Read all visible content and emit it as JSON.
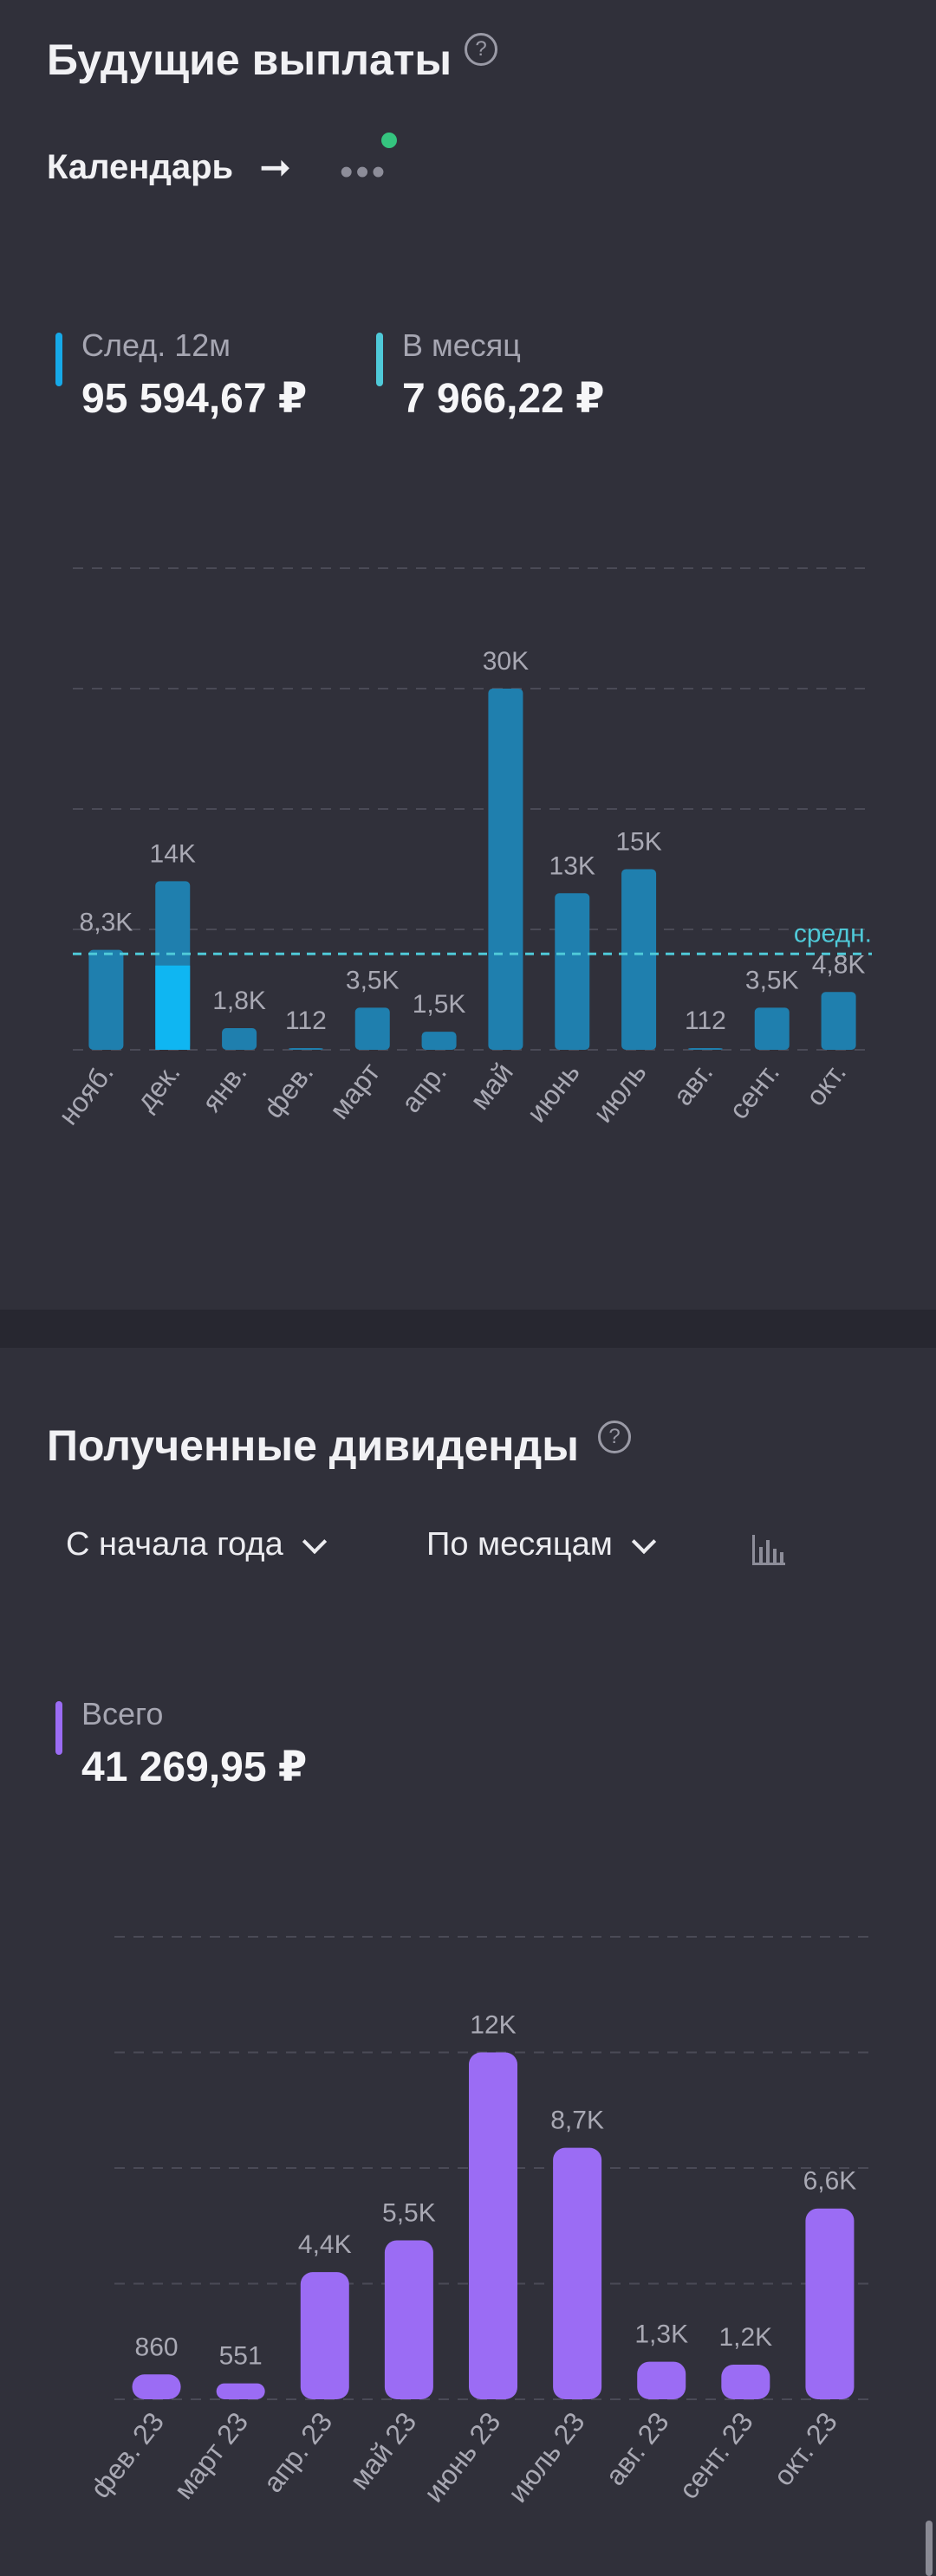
{
  "future": {
    "title": "Будущие выплаты",
    "help_icon": "question-circle-icon",
    "calendar_link": "Календарь",
    "arrow_icon": "arrow-right-icon",
    "more_icon": "more-dots-icon",
    "stats": [
      {
        "label": "След. 12м",
        "value": "95 594,67 ₽",
        "color": "#16a9e8"
      },
      {
        "label": "В месяц",
        "value": "7 966,22 ₽",
        "color": "#4fc9d8"
      }
    ],
    "avg_label": "средн."
  },
  "received": {
    "title": "Полученные дивиденды",
    "help_icon": "question-circle-icon",
    "period_dropdown": "С начала года",
    "group_dropdown": "По месяцам",
    "chart_type_icon": "bar-chart-icon",
    "total_label": "Всего",
    "total_value": "41 269,95 ₽",
    "total_color": "#9b6cf4"
  },
  "chart_data": [
    {
      "type": "bar",
      "categories": [
        "нояб.",
        "дек.",
        "янв.",
        "фев.",
        "март",
        "апр.",
        "май",
        "июнь",
        "июль",
        "авг.",
        "сент.",
        "окт."
      ],
      "values": [
        8300,
        14000,
        1800,
        112,
        3500,
        1500,
        30000,
        13000,
        15000,
        112,
        3500,
        4800
      ],
      "value_labels": [
        "8,3K",
        "14K",
        "1,8K",
        "112",
        "3,5K",
        "1,5K",
        "30K",
        "13K",
        "15K",
        "112",
        "3,5K",
        "4,8K"
      ],
      "highlight": {
        "category": "дек.",
        "value": 7000
      },
      "average": 7966.22,
      "ylim": [
        0,
        40000
      ],
      "grid": true,
      "color": "#1f7fae",
      "highlight_color": "#0fb6f2",
      "avg_color": "#4fc9d8"
    },
    {
      "type": "bar",
      "categories": [
        "фев. 23",
        "март 23",
        "апр. 23",
        "май 23",
        "июнь 23",
        "июль 23",
        "авг. 23",
        "сент. 23",
        "окт. 23"
      ],
      "values": [
        860,
        551,
        4400,
        5500,
        12000,
        8700,
        1300,
        1200,
        6600
      ],
      "value_labels": [
        "860",
        "551",
        "4,4K",
        "5,5K",
        "12K",
        "8,7K",
        "1,3K",
        "1,2K",
        "6,6K"
      ],
      "ylim": [
        0,
        16000
      ],
      "grid": true,
      "color": "#9b6cf4"
    }
  ]
}
